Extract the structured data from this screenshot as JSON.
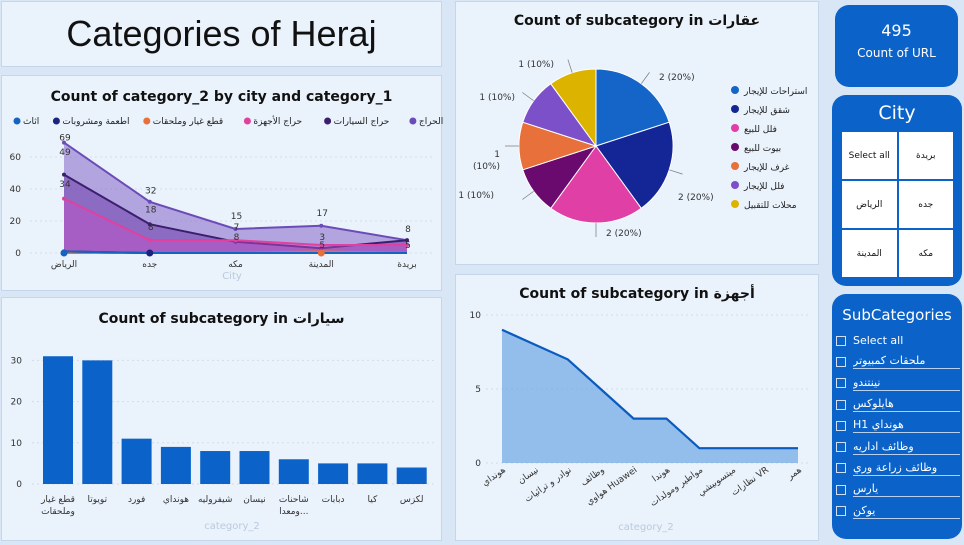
{
  "title": "Categories of Heraj",
  "kpi": {
    "value": "495",
    "label": "Count of URL"
  },
  "city_slicer": {
    "title": "City",
    "items": [
      "Select all",
      "بريدة",
      "الرياض",
      "جده",
      "المدينة",
      "مكه"
    ]
  },
  "subcategory_slicer": {
    "title": "SubCategories",
    "items": [
      "Select all",
      "ملحقات كمبيوتر",
      "نينتندو",
      "هايلوكس",
      "H1 هونداي",
      "وظائف اداريه",
      "وظائف زراعة وري",
      "يارس",
      "يوكن"
    ]
  },
  "chart_data": [
    {
      "id": "area",
      "type": "area",
      "title": "Count of category_2 by city and category_1",
      "xlabel": "City",
      "categories": [
        "الرياض",
        "جده",
        "مكه",
        "المدينة",
        "بريدة"
      ],
      "yticks": [
        0,
        20,
        40,
        60
      ],
      "ylim": [
        0,
        70
      ],
      "legend_position": "top",
      "series": [
        {
          "name": "كل الحراج",
          "color": "#6b4bb8",
          "values": [
            69,
            32,
            15,
            17,
            8
          ]
        },
        {
          "name": "حراج السيارات",
          "color": "#3b1f6e",
          "values": [
            49,
            18,
            7,
            3,
            8
          ]
        },
        {
          "name": "حراج الأجهزة",
          "color": "#e040a0",
          "values": [
            34,
            8,
            8,
            5,
            5
          ]
        },
        {
          "name": "قطع غيار وملحقات",
          "color": "#e8703a",
          "values": [
            0,
            0,
            0,
            1,
            0
          ]
        },
        {
          "name": "اطعمة ومشروبات",
          "color": "#1a237e",
          "values": [
            1,
            0,
            0,
            0,
            0
          ]
        },
        {
          "name": "اثاث",
          "color": "#1565c0",
          "values": [
            1,
            0,
            0,
            0,
            0
          ]
        }
      ],
      "data_labels": [
        {
          "text": "69",
          "x": 0,
          "y": 69
        },
        {
          "text": "49",
          "x": 0,
          "y": 60
        },
        {
          "text": "34",
          "x": 0,
          "y": 40
        },
        {
          "text": "32",
          "x": 1,
          "y": 36
        },
        {
          "text": "18",
          "x": 1,
          "y": 24
        },
        {
          "text": "8",
          "x": 1,
          "y": 13
        },
        {
          "text": "15",
          "x": 2,
          "y": 20
        },
        {
          "text": "7",
          "x": 2,
          "y": 13
        },
        {
          "text": "8",
          "x": 2,
          "y": 7
        },
        {
          "text": "17",
          "x": 3,
          "y": 22
        },
        {
          "text": "3",
          "x": 3,
          "y": 7
        },
        {
          "text": "5",
          "x": 3,
          "y": 2
        },
        {
          "text": "8",
          "x": 4,
          "y": 12
        },
        {
          "text": "5",
          "x": 4,
          "y": 2
        }
      ]
    },
    {
      "id": "pie",
      "type": "pie",
      "title": "Count of subcategory in عقارات",
      "legend_position": "right",
      "slices": [
        {
          "name": "استراحات للإيجار",
          "value": 2,
          "label": "2 (20%)",
          "color": "#1565c8"
        },
        {
          "name": "شقق للإيجار",
          "value": 2,
          "label": "2 (20%)",
          "color": "#142596"
        },
        {
          "name": "فلل للبيع",
          "value": 2,
          "label": "2 (20%)",
          "color": "#e03fa6"
        },
        {
          "name": "بيوت للبيع",
          "value": 1,
          "label": "1 (10%)",
          "color": "#6a0a6e"
        },
        {
          "name": "غرف للإيجار",
          "value": 1,
          "label": "1 (10%)",
          "color": "#e8703a"
        },
        {
          "name": "فلل للإيجار",
          "value": 1,
          "label": "1 (10%)",
          "color": "#7b50c8"
        },
        {
          "name": "محلات للتقبيل",
          "value": 1,
          "label": "1 (10%)",
          "color": "#dcb400"
        }
      ]
    },
    {
      "id": "bar",
      "type": "bar",
      "title": "Count of subcategory in سيارات",
      "xlabel": "category_2",
      "categories": [
        "قطع غيار وملحقات",
        "تويوتا",
        "فورد",
        "هونداي",
        "شيفروليه",
        "نيسان",
        "شاحنات ومعدا...",
        "دبابات",
        "كيا",
        "لكزس"
      ],
      "values": [
        31,
        30,
        11,
        9,
        8,
        8,
        6,
        5,
        5,
        4
      ],
      "yticks": [
        0,
        10,
        20,
        30
      ],
      "ylim": [
        0,
        33
      ],
      "color": "#0b63c9"
    },
    {
      "id": "area2",
      "type": "area",
      "title": "Count of subcategory in أجهزة",
      "xlabel": "category_2",
      "categories": [
        "هونداي",
        "نيسان",
        "نوادر و تراثيات",
        "وظائف",
        "هواوي Huawei",
        "هوندا",
        "مواطير ومولدات",
        "ميتسوبيشي",
        "نظارات VR",
        "همر"
      ],
      "values": [
        9,
        8,
        7,
        5,
        3,
        3,
        1,
        1,
        1,
        1
      ],
      "yticks": [
        0,
        5,
        10
      ],
      "ylim": [
        0,
        10
      ],
      "color": "#0b5bbf"
    }
  ]
}
